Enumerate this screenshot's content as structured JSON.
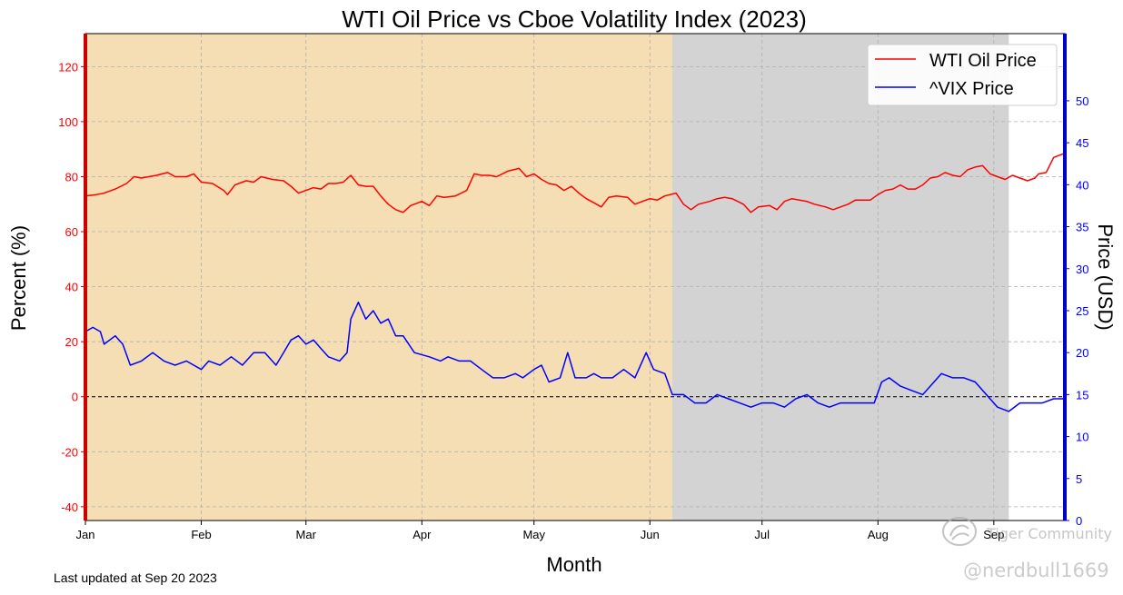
{
  "chart_data": {
    "type": "line",
    "title": "WTI Oil Price vs Cboe Volatility Index (2023)",
    "xlabel": "Month",
    "ylabel_left": "Percent (%)",
    "ylabel_right": "Price (USD)",
    "x_ticks": [
      "Jan",
      "Feb",
      "Mar",
      "Apr",
      "May",
      "Jun",
      "Jul",
      "Aug",
      "Sep"
    ],
    "x_range": [
      "2023-01-01",
      "2023-09-20"
    ],
    "y_left": {
      "range": [
        -45,
        132
      ],
      "ticks": [
        -40,
        -20,
        0,
        20,
        40,
        60,
        80,
        100,
        120
      ]
    },
    "y_right": {
      "range": [
        0,
        58
      ],
      "ticks": [
        0,
        5,
        10,
        15,
        20,
        25,
        30,
        35,
        40,
        45,
        50
      ]
    },
    "grid": true,
    "legend": "top-right",
    "zero_line": true,
    "shaded_regions": [
      {
        "start": "2023-01-01",
        "end": "2023-06-07",
        "color": "#f5deb3"
      },
      {
        "start": "2023-06-07",
        "end": "2023-09-05",
        "color": "#d3d3d3"
      }
    ],
    "series": [
      {
        "name": "WTI Oil Price",
        "color": "#ff0000",
        "axis": "left",
        "points": [
          [
            "2023-01-01",
            73
          ],
          [
            "2023-01-04",
            73.5
          ],
          [
            "2023-01-06",
            74
          ],
          [
            "2023-01-09",
            75.5
          ],
          [
            "2023-01-12",
            77.5
          ],
          [
            "2023-01-14",
            80
          ],
          [
            "2023-01-16",
            79.5
          ],
          [
            "2023-01-18",
            80
          ],
          [
            "2023-01-20",
            80.5
          ],
          [
            "2023-01-23",
            81.5
          ],
          [
            "2023-01-25",
            80
          ],
          [
            "2023-01-28",
            80
          ],
          [
            "2023-01-30",
            81
          ],
          [
            "2023-02-01",
            78
          ],
          [
            "2023-02-04",
            77.5
          ],
          [
            "2023-02-07",
            75
          ],
          [
            "2023-02-08",
            73.5
          ],
          [
            "2023-02-10",
            77
          ],
          [
            "2023-02-13",
            78.5
          ],
          [
            "2023-02-15",
            78
          ],
          [
            "2023-02-17",
            80
          ],
          [
            "2023-02-20",
            79
          ],
          [
            "2023-02-23",
            78.5
          ],
          [
            "2023-02-25",
            76.5
          ],
          [
            "2023-02-27",
            74
          ],
          [
            "2023-03-01",
            75
          ],
          [
            "2023-03-03",
            76
          ],
          [
            "2023-03-05",
            75.5
          ],
          [
            "2023-03-07",
            77.5
          ],
          [
            "2023-03-09",
            77.5
          ],
          [
            "2023-03-11",
            78
          ],
          [
            "2023-03-13",
            80.5
          ],
          [
            "2023-03-15",
            77
          ],
          [
            "2023-03-17",
            76.5
          ],
          [
            "2023-03-19",
            76.5
          ],
          [
            "2023-03-21",
            73
          ],
          [
            "2023-03-23",
            70
          ],
          [
            "2023-03-25",
            68
          ],
          [
            "2023-03-27",
            67
          ],
          [
            "2023-03-29",
            69.5
          ],
          [
            "2023-04-01",
            71
          ],
          [
            "2023-04-03",
            69.5
          ],
          [
            "2023-04-05",
            73
          ],
          [
            "2023-04-07",
            72.5
          ],
          [
            "2023-04-10",
            73
          ],
          [
            "2023-04-13",
            75
          ],
          [
            "2023-04-15",
            81
          ],
          [
            "2023-04-17",
            80.5
          ],
          [
            "2023-04-19",
            80.5
          ],
          [
            "2023-04-21",
            80
          ],
          [
            "2023-04-24",
            82
          ],
          [
            "2023-04-27",
            83
          ],
          [
            "2023-04-29",
            80
          ],
          [
            "2023-05-01",
            81
          ],
          [
            "2023-05-03",
            79
          ],
          [
            "2023-05-05",
            77.5
          ],
          [
            "2023-05-07",
            77
          ],
          [
            "2023-05-09",
            75
          ],
          [
            "2023-05-11",
            76.5
          ],
          [
            "2023-05-13",
            74
          ],
          [
            "2023-05-15",
            72
          ],
          [
            "2023-05-17",
            70.5
          ],
          [
            "2023-05-19",
            69
          ],
          [
            "2023-05-21",
            72.5
          ],
          [
            "2023-05-23",
            73
          ],
          [
            "2023-05-26",
            72.5
          ],
          [
            "2023-05-28",
            70
          ],
          [
            "2023-05-30",
            71
          ],
          [
            "2023-06-01",
            72
          ],
          [
            "2023-06-03",
            71.5
          ],
          [
            "2023-06-05",
            73
          ],
          [
            "2023-06-08",
            74
          ],
          [
            "2023-06-10",
            70
          ],
          [
            "2023-06-12",
            68
          ],
          [
            "2023-06-14",
            70
          ],
          [
            "2023-06-17",
            71
          ],
          [
            "2023-06-19",
            72
          ],
          [
            "2023-06-21",
            72.5
          ],
          [
            "2023-06-23",
            72
          ],
          [
            "2023-06-26",
            70
          ],
          [
            "2023-06-28",
            67
          ],
          [
            "2023-06-30",
            69
          ],
          [
            "2023-07-03",
            69.5
          ],
          [
            "2023-07-05",
            68
          ],
          [
            "2023-07-07",
            71
          ],
          [
            "2023-07-09",
            72
          ],
          [
            "2023-07-11",
            71.5
          ],
          [
            "2023-07-13",
            71
          ],
          [
            "2023-07-15",
            70
          ],
          [
            "2023-07-18",
            69
          ],
          [
            "2023-07-20",
            68
          ],
          [
            "2023-07-22",
            69
          ],
          [
            "2023-07-24",
            70
          ],
          [
            "2023-07-26",
            71.5
          ],
          [
            "2023-07-28",
            71.5
          ],
          [
            "2023-07-30",
            71.5
          ],
          [
            "2023-08-01",
            73.5
          ],
          [
            "2023-08-03",
            75
          ],
          [
            "2023-08-05",
            75.5
          ],
          [
            "2023-08-07",
            77
          ],
          [
            "2023-08-09",
            75.5
          ],
          [
            "2023-08-11",
            75.5
          ],
          [
            "2023-08-13",
            77
          ],
          [
            "2023-08-15",
            79.5
          ],
          [
            "2023-08-17",
            80
          ],
          [
            "2023-08-19",
            81.5
          ],
          [
            "2023-08-21",
            80.5
          ],
          [
            "2023-08-23",
            80
          ],
          [
            "2023-08-25",
            82.5
          ],
          [
            "2023-08-27",
            83.5
          ],
          [
            "2023-08-29",
            84
          ],
          [
            "2023-08-31",
            81
          ],
          [
            "2023-09-02",
            80
          ],
          [
            "2023-09-04",
            79
          ],
          [
            "2023-09-06",
            80.5
          ],
          [
            "2023-09-08",
            79.5
          ],
          [
            "2023-09-10",
            78.5
          ],
          [
            "2023-09-12",
            79.5
          ],
          [
            "2023-09-13",
            81
          ],
          [
            "2023-09-15",
            81.5
          ],
          [
            "2023-09-17",
            87
          ],
          [
            "2023-09-20",
            88.5
          ]
        ]
      },
      {
        "name": "^VIX Price",
        "color": "#0000ff",
        "axis": "right",
        "points": [
          [
            "2023-01-01",
            22.5
          ],
          [
            "2023-01-03",
            23
          ],
          [
            "2023-01-05",
            22.5
          ],
          [
            "2023-01-06",
            21
          ],
          [
            "2023-01-09",
            22
          ],
          [
            "2023-01-11",
            21
          ],
          [
            "2023-01-13",
            18.5
          ],
          [
            "2023-01-16",
            19
          ],
          [
            "2023-01-19",
            20
          ],
          [
            "2023-01-22",
            19
          ],
          [
            "2023-01-25",
            18.5
          ],
          [
            "2023-01-28",
            19
          ],
          [
            "2023-02-01",
            18
          ],
          [
            "2023-02-03",
            19
          ],
          [
            "2023-02-06",
            18.5
          ],
          [
            "2023-02-09",
            19.5
          ],
          [
            "2023-02-12",
            18.5
          ],
          [
            "2023-02-15",
            20
          ],
          [
            "2023-02-18",
            20
          ],
          [
            "2023-02-21",
            18.5
          ],
          [
            "2023-02-23",
            20
          ],
          [
            "2023-02-25",
            21.5
          ],
          [
            "2023-02-27",
            22
          ],
          [
            "2023-03-01",
            21
          ],
          [
            "2023-03-03",
            21.5
          ],
          [
            "2023-03-05",
            20.5
          ],
          [
            "2023-03-07",
            19.5
          ],
          [
            "2023-03-10",
            19
          ],
          [
            "2023-03-12",
            20
          ],
          [
            "2023-03-13",
            24
          ],
          [
            "2023-03-15",
            26
          ],
          [
            "2023-03-17",
            24
          ],
          [
            "2023-03-19",
            25
          ],
          [
            "2023-03-21",
            23.5
          ],
          [
            "2023-03-23",
            24
          ],
          [
            "2023-03-25",
            22
          ],
          [
            "2023-03-27",
            22
          ],
          [
            "2023-03-30",
            20
          ],
          [
            "2023-04-03",
            19.5
          ],
          [
            "2023-04-06",
            19
          ],
          [
            "2023-04-08",
            19.5
          ],
          [
            "2023-04-11",
            19
          ],
          [
            "2023-04-14",
            19
          ],
          [
            "2023-04-17",
            18
          ],
          [
            "2023-04-20",
            17
          ],
          [
            "2023-04-23",
            17
          ],
          [
            "2023-04-26",
            17.5
          ],
          [
            "2023-04-28",
            17
          ],
          [
            "2023-05-01",
            18
          ],
          [
            "2023-05-03",
            18.5
          ],
          [
            "2023-05-05",
            16.5
          ],
          [
            "2023-05-08",
            17
          ],
          [
            "2023-05-10",
            20
          ],
          [
            "2023-05-12",
            17
          ],
          [
            "2023-05-15",
            17
          ],
          [
            "2023-05-17",
            17.5
          ],
          [
            "2023-05-19",
            17
          ],
          [
            "2023-05-22",
            17
          ],
          [
            "2023-05-25",
            18
          ],
          [
            "2023-05-28",
            17
          ],
          [
            "2023-05-31",
            20
          ],
          [
            "2023-06-02",
            18
          ],
          [
            "2023-06-05",
            17.5
          ],
          [
            "2023-06-07",
            15
          ],
          [
            "2023-06-10",
            15
          ],
          [
            "2023-06-13",
            14
          ],
          [
            "2023-06-16",
            14
          ],
          [
            "2023-06-19",
            15
          ],
          [
            "2023-06-22",
            14.5
          ],
          [
            "2023-06-25",
            14
          ],
          [
            "2023-06-28",
            13.5
          ],
          [
            "2023-07-01",
            14
          ],
          [
            "2023-07-04",
            14
          ],
          [
            "2023-07-07",
            13.5
          ],
          [
            "2023-07-10",
            14.5
          ],
          [
            "2023-07-13",
            15
          ],
          [
            "2023-07-16",
            14
          ],
          [
            "2023-07-19",
            13.5
          ],
          [
            "2023-07-22",
            14
          ],
          [
            "2023-07-25",
            14
          ],
          [
            "2023-07-28",
            14
          ],
          [
            "2023-07-31",
            14
          ],
          [
            "2023-08-02",
            16.5
          ],
          [
            "2023-08-04",
            17
          ],
          [
            "2023-08-07",
            16
          ],
          [
            "2023-08-10",
            15.5
          ],
          [
            "2023-08-13",
            15
          ],
          [
            "2023-08-16",
            16.5
          ],
          [
            "2023-08-18",
            17.5
          ],
          [
            "2023-08-21",
            17
          ],
          [
            "2023-08-24",
            17
          ],
          [
            "2023-08-27",
            16.5
          ],
          [
            "2023-08-30",
            15
          ],
          [
            "2023-09-02",
            13.5
          ],
          [
            "2023-09-05",
            13
          ],
          [
            "2023-09-08",
            14
          ],
          [
            "2023-09-11",
            14
          ],
          [
            "2023-09-14",
            14
          ],
          [
            "2023-09-17",
            14.5
          ],
          [
            "2023-09-20",
            14.5
          ]
        ]
      }
    ]
  },
  "footer": {
    "last_updated": "Last updated at Sep 20 2023"
  },
  "watermark": {
    "text": "Tiger Community",
    "handle": "@nerdbull1669",
    "logo_icon": "tiger-logo-icon"
  }
}
